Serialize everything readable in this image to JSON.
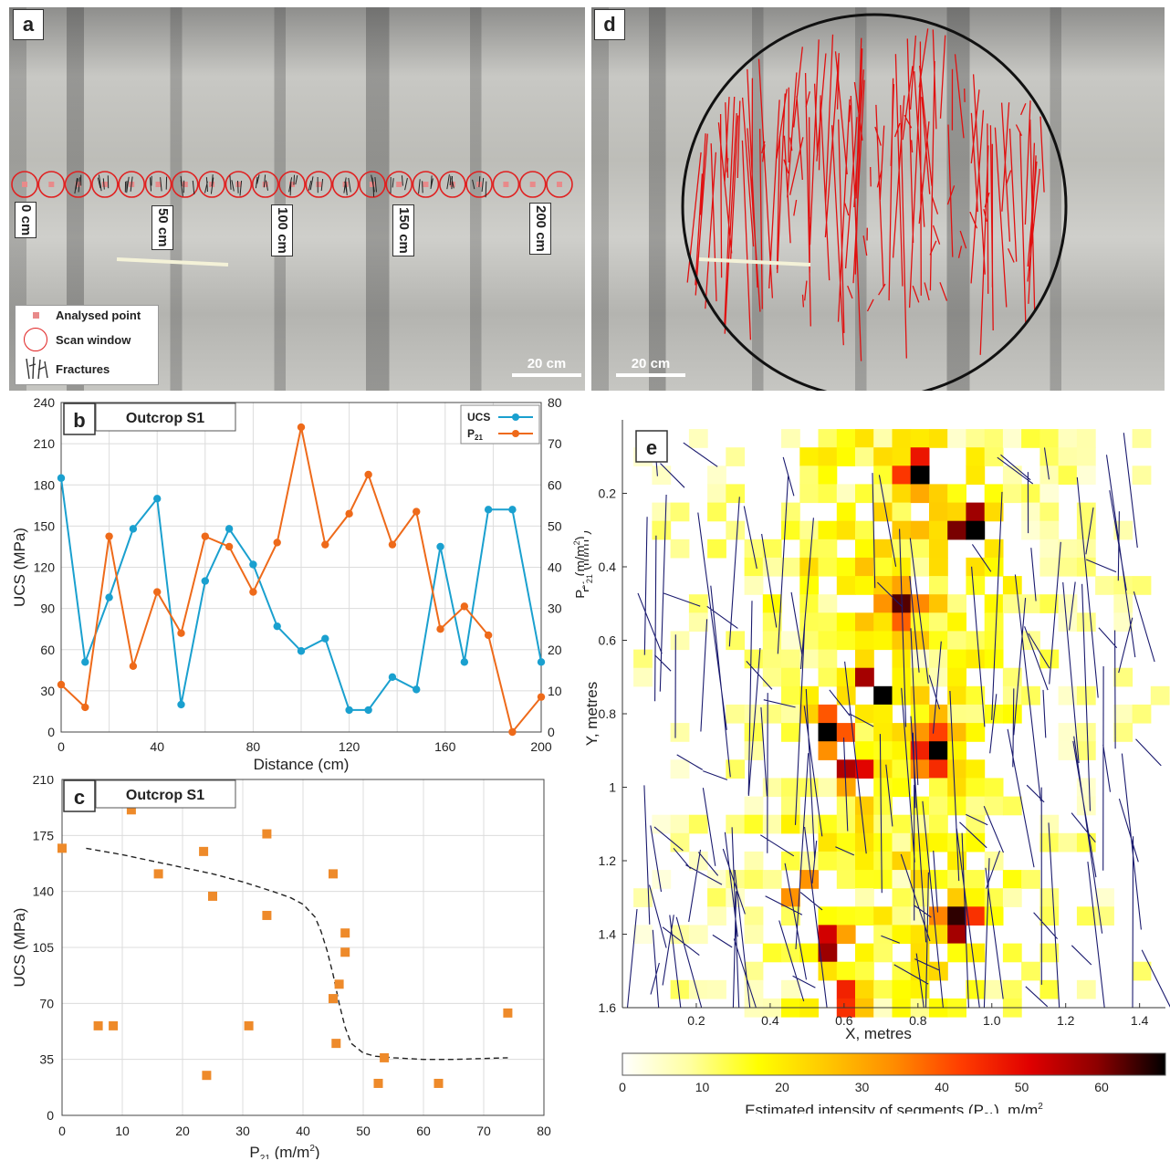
{
  "panel_a": {
    "tag": "a",
    "distance_labels": [
      "0 cm",
      "50 cm",
      "100 cm",
      "150 cm",
      "200 cm"
    ],
    "legend": {
      "analysed_point": "Analysed point",
      "scan_window": "Scan window",
      "fractures": "Fractures"
    },
    "scale": "20 cm",
    "colors": {
      "point": "#e88a8a",
      "circle": "#e02020"
    }
  },
  "panel_d": {
    "tag": "d",
    "scale": "20 cm",
    "colors": {
      "trace": "#e01010",
      "circle": "#111111"
    }
  },
  "chart_data": [
    {
      "panel": "b",
      "type": "line",
      "title": "Outcrop S1",
      "xlabel": "Distance (cm)",
      "ylabel": "UCS (MPa)",
      "y2label_main": "P",
      "y2label_sub": "21",
      "y2label_unit_pre": " (m/m",
      "y2label_unit_sup": "2",
      "y2label_unit_post": ")",
      "xlim": [
        0,
        200
      ],
      "ylim": [
        0,
        240
      ],
      "y2lim": [
        0,
        80
      ],
      "xticks": [
        "0",
        "40",
        "80",
        "120",
        "160",
        "200"
      ],
      "yticks": [
        "0",
        "30",
        "60",
        "90",
        "120",
        "150",
        "180",
        "210",
        "240"
      ],
      "y2ticks": [
        "0",
        "10",
        "20",
        "30",
        "40",
        "50",
        "60",
        "70",
        "80"
      ],
      "grid": true,
      "legend_position": "top-right",
      "series": [
        {
          "name": "UCS",
          "axis": "left",
          "color": "#1aa0cf",
          "x": [
            0,
            10,
            20,
            30,
            40,
            50,
            60,
            70,
            80,
            90,
            100,
            110,
            120,
            128,
            138,
            148,
            158,
            168,
            178,
            188,
            200
          ],
          "y": [
            185,
            51,
            98,
            148,
            170,
            20,
            110,
            148,
            122,
            77,
            59,
            68,
            16,
            16,
            40,
            31,
            135,
            51,
            162,
            162,
            51
          ]
        },
        {
          "name": "P",
          "name_sub": "21",
          "axis": "right",
          "color": "#ee6a1a",
          "x": [
            0,
            10,
            20,
            30,
            40,
            50,
            60,
            70,
            80,
            90,
            100,
            110,
            120,
            128,
            138,
            148,
            158,
            168,
            178,
            188,
            200
          ],
          "y": [
            11.5,
            6,
            47.5,
            16,
            34,
            24,
            47.5,
            45,
            34,
            46,
            74,
            45.5,
            53,
            62.5,
            45.5,
            53.5,
            25,
            30.5,
            23.5,
            0,
            8.5
          ]
        }
      ]
    },
    {
      "panel": "c",
      "type": "scatter",
      "title": "Outcrop S1",
      "xlabel_main": "P",
      "xlabel_sub": "21",
      "xlabel_unit_pre": " (m/m",
      "xlabel_unit_sup": "2",
      "xlabel_unit_post": ")",
      "ylabel": "UCS (MPa)",
      "xlim": [
        0,
        80
      ],
      "ylim": [
        0,
        210
      ],
      "xticks": [
        "0",
        "10",
        "20",
        "30",
        "40",
        "50",
        "60",
        "70",
        "80"
      ],
      "yticks": [
        "0",
        "35",
        "70",
        "105",
        "140",
        "175",
        "210"
      ],
      "grid": true,
      "marker_color": "#ee8a2a",
      "points": [
        [
          0,
          167
        ],
        [
          6,
          56
        ],
        [
          8.5,
          56
        ],
        [
          11.5,
          191
        ],
        [
          16,
          151
        ],
        [
          23.5,
          165
        ],
        [
          24,
          25
        ],
        [
          25,
          137
        ],
        [
          31,
          56
        ],
        [
          34,
          176
        ],
        [
          34,
          125
        ],
        [
          45,
          151
        ],
        [
          45,
          73
        ],
        [
          45.5,
          45
        ],
        [
          46,
          82
        ],
        [
          47,
          114
        ],
        [
          47,
          102
        ],
        [
          52.5,
          20
        ],
        [
          53.5,
          36
        ],
        [
          62.5,
          20
        ],
        [
          74,
          64
        ]
      ],
      "fit_curve": {
        "x": [
          4,
          10,
          15,
          20,
          25,
          30,
          35,
          38,
          40,
          42,
          43,
          44,
          45,
          46,
          47,
          48,
          50,
          52,
          55,
          60,
          65,
          74
        ],
        "y": [
          167,
          163,
          159,
          155,
          151,
          146,
          140,
          136,
          132,
          124,
          115,
          103,
          88,
          70,
          55,
          45,
          39,
          37,
          36,
          35,
          35,
          36
        ]
      }
    },
    {
      "panel": "e",
      "type": "heatmap",
      "xlabel": "X, metres",
      "ylabel": "Y, metres",
      "inner_label_main": "P",
      "inner_label_sub": "21",
      "inner_label_unit_pre": " (m/m",
      "inner_label_unit_sup": "2",
      "inner_label_unit_post": ")",
      "xlim": [
        0,
        1.47
      ],
      "ylim": [
        1.6,
        0
      ],
      "xticks": [
        "0.2",
        "0.4",
        "0.6",
        "0.8",
        "1.0",
        "1.2",
        "1.4"
      ],
      "yticks": [
        "0.2",
        "0.4",
        "0.6",
        "0.8",
        "1",
        "1.2",
        "1.4",
        "1.6"
      ],
      "cell_size": 0.05,
      "colorbar_label_pre": "Estimated intensity of segments (P",
      "colorbar_label_sub": "21",
      "colorbar_label_mid": "), m/m",
      "colorbar_label_sup": "2",
      "colorbar_range": [
        0,
        68
      ],
      "colorbar_ticks": [
        "0",
        "10",
        "20",
        "30",
        "40",
        "50",
        "60"
      ],
      "colormap": [
        "#ffffff",
        "#ffffa0",
        "#ffff00",
        "#ffc800",
        "#ff8c00",
        "#ff3c00",
        "#e00000",
        "#8c0000",
        "#000000"
      ],
      "trace_color": "#1a1a6e"
    }
  ]
}
